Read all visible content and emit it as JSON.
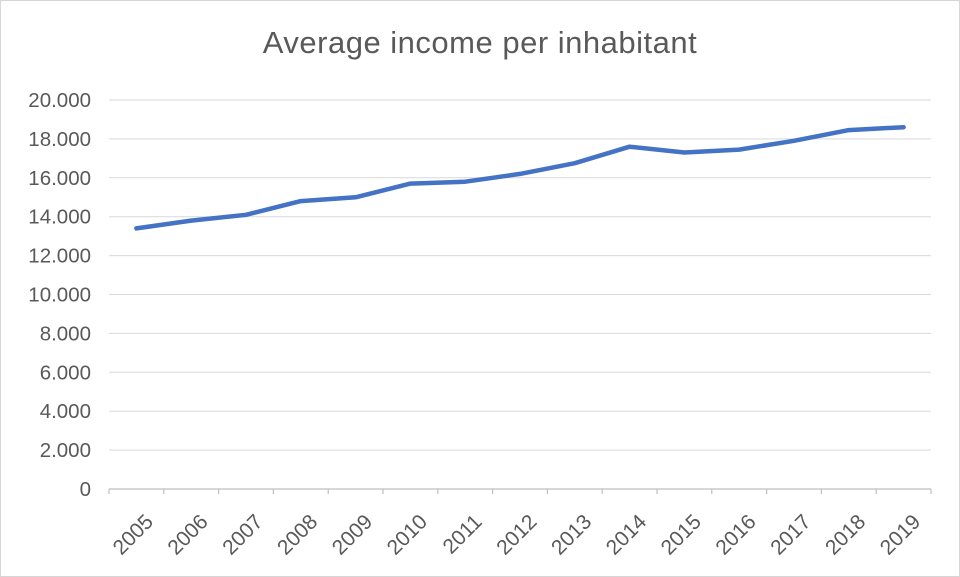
{
  "chart_data": {
    "type": "line",
    "title": "Average income per inhabitant",
    "categories": [
      "2005",
      "2006",
      "2007",
      "2008",
      "2009",
      "2010",
      "2011",
      "2012",
      "2013",
      "2014",
      "2015",
      "2016",
      "2017",
      "2018",
      "2019"
    ],
    "series": [
      {
        "name": "Average income per inhabitant",
        "values": [
          13400,
          13800,
          14100,
          14800,
          15000,
          15700,
          15800,
          16200,
          16750,
          17600,
          17300,
          17450,
          17900,
          18450,
          18600
        ]
      }
    ],
    "xlabel": "",
    "ylabel": "",
    "ylim": [
      0,
      20000
    ],
    "y_tick_step": 2000,
    "y_tick_labels": [
      "0",
      "2.000",
      "4.000",
      "6.000",
      "8.000",
      "10.000",
      "12.000",
      "14.000",
      "16.000",
      "18.000",
      "20.000"
    ],
    "x_label_rotation_deg": -45,
    "grid": true,
    "legend": "none",
    "colors": {
      "line": "#4472C4",
      "gridline": "#d9d9d9",
      "axis": "#bfbfbf",
      "text": "#595959",
      "title_text": "#595959",
      "background": "#ffffff",
      "frame_border": "#d6d6d6"
    }
  }
}
